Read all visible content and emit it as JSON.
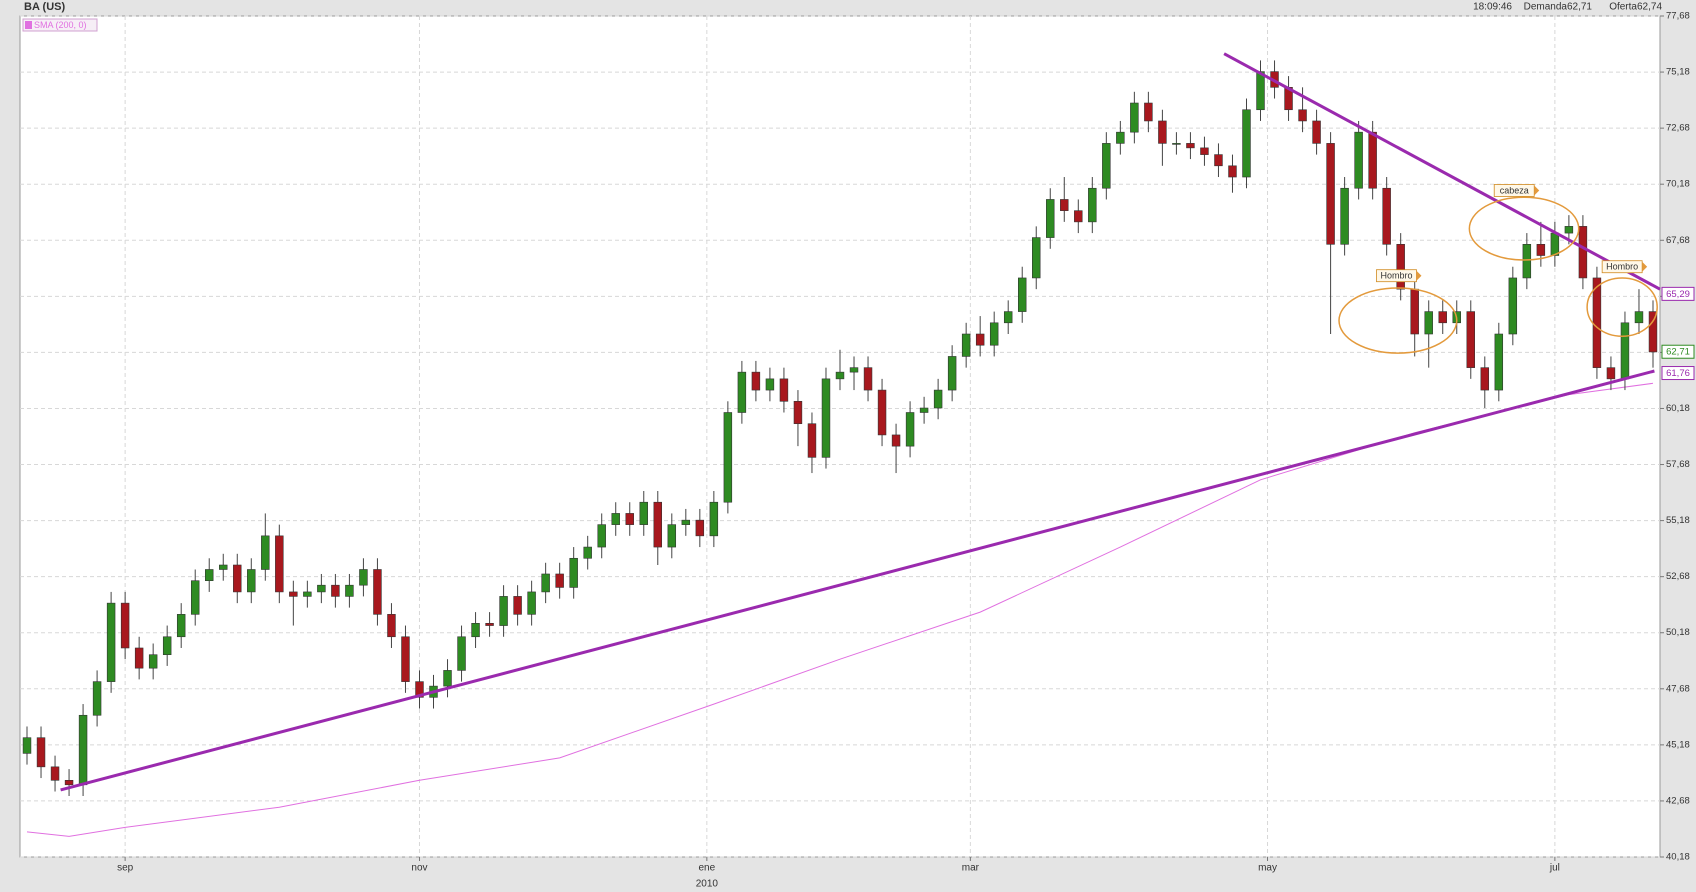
{
  "chart_data": {
    "type": "candlestick",
    "title": "BA (US)",
    "time": "18:09:46",
    "bid": "Demanda62,71",
    "ask": "Oferta62,74",
    "up_color": "#2e8b22",
    "down_color": "#a8181e",
    "grid": true,
    "xlim": [
      -0.5,
      116.5
    ],
    "xticks": [
      {
        "value": 7,
        "label": "sep"
      },
      {
        "value": 28,
        "label": "nov"
      },
      {
        "value": 48.5,
        "label": "ene"
      },
      {
        "value": 67.3,
        "label": "mar"
      },
      {
        "value": 88.5,
        "label": "may"
      },
      {
        "value": 109,
        "label": "jul"
      }
    ],
    "year_label": "2010",
    "ylim": [
      40.18,
      77.68
    ],
    "yticks": [
      {
        "value": 40.18,
        "label": "40,18"
      },
      {
        "value": 42.68,
        "label": "42,68"
      },
      {
        "value": 45.18,
        "label": "45,18"
      },
      {
        "value": 47.68,
        "label": "47,68"
      },
      {
        "value": 50.18,
        "label": "50,18"
      },
      {
        "value": 52.68,
        "label": "52,68"
      },
      {
        "value": 55.18,
        "label": "55,18"
      },
      {
        "value": 57.68,
        "label": "57,68"
      },
      {
        "value": 60.18,
        "label": "60,18"
      },
      {
        "value": 62.68,
        "label": "62,68"
      },
      {
        "value": 65.18,
        "label": "65,18"
      },
      {
        "value": 67.68,
        "label": "67,68"
      },
      {
        "value": 70.18,
        "label": "70,18"
      },
      {
        "value": 72.68,
        "label": "72,68"
      },
      {
        "value": 75.18,
        "label": "75,18"
      },
      {
        "value": 77.68,
        "label": "77,68"
      }
    ],
    "open": [
      44.8,
      45.5,
      44.2,
      43.6,
      43.4,
      46.5,
      48.0,
      51.5,
      49.5,
      48.6,
      49.2,
      50.0,
      51.0,
      52.5,
      53.0,
      53.2,
      52.0,
      53.0,
      54.5,
      52.0,
      51.8,
      52.0,
      52.3,
      51.8,
      52.3,
      53.0,
      51.0,
      50.0,
      48.0,
      47.3,
      47.8,
      48.5,
      50.0,
      50.6,
      50.5,
      51.8,
      51.0,
      52.0,
      52.8,
      52.2,
      53.5,
      54.0,
      55.0,
      55.5,
      55.0,
      56.0,
      54.0,
      55.0,
      55.2,
      54.5,
      56.0,
      60.0,
      61.8,
      61.0,
      61.5,
      60.5,
      59.5,
      58.0,
      61.5,
      61.8,
      62.0,
      61.0,
      59.0,
      58.5,
      60.0,
      60.2,
      61.0,
      62.5,
      63.5,
      63.0,
      64.0,
      64.5,
      66.0,
      67.8,
      69.5,
      69.0,
      68.5,
      70.0,
      72.0,
      72.5,
      73.8,
      73.0,
      72.0,
      72.0,
      71.8,
      71.5,
      71.0,
      70.5,
      73.5,
      75.2,
      74.5,
      73.5,
      73.0,
      72.0,
      67.5,
      70.0,
      72.5,
      70.0,
      67.5,
      65.5,
      63.5,
      64.5,
      64.0,
      64.5,
      62.0,
      61.0,
      63.5,
      66.0,
      67.5,
      67.0,
      68.0,
      68.3,
      66.0,
      62.0,
      61.5,
      64.0,
      64.5
    ],
    "high": [
      46.0,
      46.0,
      44.7,
      44.1,
      47.0,
      48.5,
      52.0,
      52.0,
      50.0,
      49.7,
      50.5,
      51.5,
      53.0,
      53.5,
      53.7,
      53.7,
      53.5,
      55.5,
      55.0,
      52.5,
      52.5,
      52.8,
      52.8,
      52.8,
      53.5,
      53.5,
      51.5,
      50.5,
      48.5,
      48.3,
      49.0,
      50.5,
      51.1,
      51.1,
      52.3,
      52.3,
      52.5,
      53.3,
      53.3,
      54.0,
      54.5,
      55.5,
      56.0,
      56.0,
      56.5,
      56.5,
      55.5,
      55.7,
      55.7,
      56.5,
      60.5,
      62.3,
      62.3,
      62.0,
      62.0,
      61.0,
      60.0,
      62.0,
      62.8,
      62.5,
      62.5,
      61.5,
      59.5,
      60.5,
      60.7,
      61.5,
      63.0,
      64.0,
      64.3,
      64.5,
      65.0,
      66.5,
      68.3,
      70.0,
      70.5,
      69.5,
      70.5,
      72.5,
      73.0,
      74.3,
      74.3,
      73.5,
      72.5,
      72.5,
      72.3,
      72.0,
      71.5,
      74.0,
      75.7,
      75.7,
      75.0,
      74.5,
      73.5,
      72.5,
      70.5,
      73.0,
      73.0,
      70.5,
      68.0,
      66.0,
      65.0,
      65.0,
      65.0,
      65.0,
      62.5,
      64.0,
      66.5,
      68.0,
      68.5,
      68.5,
      68.8,
      68.8,
      66.5,
      62.5,
      64.5,
      65.5,
      65.0
    ],
    "low": [
      44.3,
      43.7,
      43.1,
      42.9,
      42.9,
      46.0,
      47.5,
      49.0,
      48.1,
      48.1,
      48.7,
      49.5,
      50.5,
      52.0,
      52.5,
      51.5,
      51.5,
      52.5,
      51.5,
      50.5,
      51.3,
      51.5,
      51.3,
      51.3,
      51.8,
      50.5,
      49.5,
      47.5,
      46.8,
      46.8,
      47.3,
      48.0,
      49.5,
      50.0,
      50.0,
      50.5,
      50.5,
      51.5,
      51.7,
      51.7,
      53.0,
      53.5,
      54.5,
      54.5,
      54.5,
      53.2,
      53.5,
      54.5,
      54.0,
      54.0,
      55.5,
      59.5,
      60.5,
      60.5,
      60.0,
      58.5,
      57.3,
      57.5,
      61.0,
      61.0,
      60.5,
      58.5,
      57.3,
      58.0,
      59.5,
      59.7,
      60.5,
      62.0,
      62.5,
      62.5,
      63.5,
      64.0,
      65.5,
      67.3,
      68.5,
      68.0,
      68.0,
      69.5,
      71.5,
      72.0,
      72.5,
      71.0,
      71.5,
      71.3,
      71.0,
      70.5,
      69.8,
      70.0,
      73.0,
      74.0,
      73.0,
      72.5,
      71.5,
      63.5,
      67.0,
      69.5,
      69.5,
      67.0,
      65.0,
      62.5,
      62.0,
      63.5,
      63.5,
      61.5,
      60.2,
      60.5,
      63.0,
      65.5,
      66.5,
      66.5,
      67.5,
      65.5,
      61.5,
      61.0,
      61.0,
      63.5,
      62.0
    ],
    "close": [
      45.5,
      44.2,
      43.6,
      43.4,
      46.5,
      48.0,
      51.5,
      49.5,
      48.6,
      49.2,
      50.0,
      51.0,
      52.5,
      53.0,
      53.2,
      52.0,
      53.0,
      54.5,
      52.0,
      51.8,
      52.0,
      52.3,
      51.8,
      52.3,
      53.0,
      51.0,
      50.0,
      48.0,
      47.3,
      47.8,
      48.5,
      50.0,
      50.6,
      50.5,
      51.8,
      51.0,
      52.0,
      52.8,
      52.2,
      53.5,
      54.0,
      55.0,
      55.5,
      55.0,
      56.0,
      54.0,
      55.0,
      55.2,
      54.5,
      56.0,
      60.0,
      61.8,
      61.0,
      61.5,
      60.5,
      59.5,
      58.0,
      61.5,
      61.8,
      62.0,
      61.0,
      59.0,
      58.5,
      60.0,
      60.2,
      61.0,
      62.5,
      63.5,
      63.0,
      64.0,
      64.5,
      66.0,
      67.8,
      69.5,
      69.0,
      68.5,
      70.0,
      72.0,
      72.5,
      73.8,
      73.0,
      72.0,
      72.0,
      71.8,
      71.5,
      71.0,
      70.5,
      73.5,
      75.2,
      74.5,
      73.5,
      73.0,
      72.0,
      67.5,
      70.0,
      72.5,
      70.0,
      67.5,
      65.5,
      63.5,
      64.5,
      64.0,
      64.5,
      62.0,
      61.0,
      63.5,
      66.0,
      67.5,
      67.0,
      68.0,
      68.3,
      66.0,
      62.0,
      61.5,
      64.0,
      64.5,
      62.7
    ],
    "sma": {
      "name": "SMA (200, 0)",
      "color": "#e070e0",
      "x": [
        0,
        3,
        7,
        18,
        28,
        38,
        49,
        58,
        68,
        78,
        88,
        99,
        110,
        116
      ],
      "values": [
        41.3,
        41.1,
        41.5,
        42.4,
        43.6,
        44.6,
        47.0,
        49.0,
        51.1,
        54.0,
        57.0,
        59.1,
        60.8,
        61.3
      ]
    },
    "trendlines": [
      {
        "color": "#9a2aae",
        "x": [
          2.4,
          116.1
        ],
        "values": [
          43.17,
          61.85
        ]
      },
      {
        "color": "#9a2aae",
        "x": [
          85.4,
          116.5
        ],
        "values": [
          76.0,
          65.5
        ]
      }
    ],
    "annotations": [
      {
        "text": "Hombro",
        "x": 97.8,
        "y": 64.1,
        "rx": 4.2,
        "ry": 1.45,
        "label_x": 97.7,
        "label_y": 66.1
      },
      {
        "text": "cabeza",
        "x": 106.8,
        "y": 68.2,
        "rx": 3.9,
        "ry": 1.4,
        "label_x": 106.1,
        "label_y": 69.9
      },
      {
        "text": "Hombro",
        "x": 113.8,
        "y": 64.7,
        "rx": 2.5,
        "ry": 1.3,
        "label_x": 113.8,
        "label_y": 66.5
      }
    ],
    "price_tags": [
      {
        "value": 65.29,
        "label": "65,29",
        "color": "#9a2aae"
      },
      {
        "value": 62.71,
        "label": "62,71",
        "color": "#2e8b22"
      },
      {
        "value": 61.76,
        "label": "61,76",
        "color": "#9a2aae"
      }
    ]
  }
}
